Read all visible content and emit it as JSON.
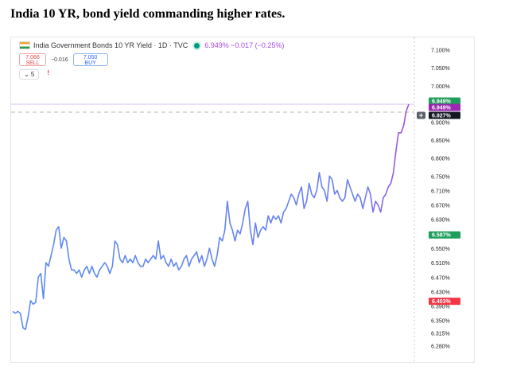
{
  "headline": "India 10 YR, bond yield commanding higher rates.",
  "legend": {
    "title": "India Government Bonds 10 YR Yield · 1D · TVC",
    "quote": "6.949% −0.017 (−0.25%)"
  },
  "trade": {
    "sell_value": "7.066",
    "sell_label": "SELL",
    "spread": "−0.016",
    "buy_value": "7.050",
    "buy_label": "BUY"
  },
  "controls": {
    "indicator_toggle": "⌄ 5",
    "warning": "!"
  },
  "colors": {
    "line_start": "#5b8def",
    "line_end": "#a64ce4",
    "badge_green": "#1e9e5a",
    "badge_purple": "#9c27b0",
    "badge_red": "#f23645",
    "badge_dark": "#131722"
  },
  "chart_data": {
    "type": "line",
    "ytick_labels": [
      "7.100%",
      "7.050%",
      "7.000%",
      "6.900%",
      "6.850%",
      "6.800%",
      "6.750%",
      "6.710%",
      "6.670%",
      "6.630%",
      "6.550%",
      "6.510%",
      "6.470%",
      "6.430%",
      "6.390%",
      "6.350%",
      "6.315%",
      "6.280%"
    ],
    "yticks": [
      7.1,
      7.05,
      7.0,
      6.9,
      6.85,
      6.8,
      6.75,
      6.71,
      6.67,
      6.63,
      6.55,
      6.51,
      6.47,
      6.43,
      6.39,
      6.35,
      6.315,
      6.28
    ],
    "ylim": [
      6.27,
      7.11
    ],
    "grid": false,
    "price_labels": [
      {
        "value": 6.949,
        "text": "6.949%",
        "color": "#1e9e5a"
      },
      {
        "value": 6.949,
        "text": "6.949%",
        "color": "#9c27b0"
      },
      {
        "value": 6.927,
        "text": "6.927%",
        "color": "#131722"
      },
      {
        "value": 6.587,
        "text": "6.587%",
        "color": "#1e9e5a"
      },
      {
        "value": 6.403,
        "text": "6.403%",
        "color": "#f23645"
      }
    ],
    "values": [
      6.375,
      6.37,
      6.375,
      6.37,
      6.33,
      6.325,
      6.36,
      6.405,
      6.395,
      6.4,
      6.47,
      6.48,
      6.41,
      6.51,
      6.5,
      6.53,
      6.56,
      6.6,
      6.61,
      6.55,
      6.58,
      6.57,
      6.52,
      6.49,
      6.49,
      6.48,
      6.49,
      6.47,
      6.49,
      6.5,
      6.48,
      6.5,
      6.48,
      6.47,
      6.49,
      6.5,
      6.51,
      6.5,
      6.48,
      6.5,
      6.57,
      6.56,
      6.52,
      6.51,
      6.53,
      6.51,
      6.52,
      6.51,
      6.53,
      6.51,
      6.5,
      6.5,
      6.52,
      6.51,
      6.52,
      6.53,
      6.52,
      6.57,
      6.52,
      6.53,
      6.51,
      6.5,
      6.52,
      6.5,
      6.51,
      6.49,
      6.5,
      6.52,
      6.53,
      6.5,
      6.52,
      6.53,
      6.54,
      6.51,
      6.53,
      6.5,
      6.52,
      6.55,
      6.52,
      6.5,
      6.53,
      6.58,
      6.57,
      6.6,
      6.68,
      6.62,
      6.6,
      6.57,
      6.6,
      6.59,
      6.62,
      6.66,
      6.68,
      6.6,
      6.56,
      6.62,
      6.58,
      6.6,
      6.61,
      6.6,
      6.64,
      6.62,
      6.64,
      6.63,
      6.64,
      6.62,
      6.65,
      6.66,
      6.68,
      6.7,
      6.69,
      6.67,
      6.7,
      6.72,
      6.66,
      6.68,
      6.73,
      6.7,
      6.69,
      6.71,
      6.76,
      6.72,
      6.71,
      6.68,
      6.75,
      6.74,
      6.7,
      6.71,
      6.69,
      6.68,
      6.69,
      6.74,
      6.72,
      6.7,
      6.68,
      6.7,
      6.69,
      6.66,
      6.69,
      6.72,
      6.7,
      6.65,
      6.68,
      6.67,
      6.65,
      6.69,
      6.7,
      6.72,
      6.73,
      6.76,
      6.82,
      6.87,
      6.87,
      6.89,
      6.93,
      6.949
    ]
  }
}
